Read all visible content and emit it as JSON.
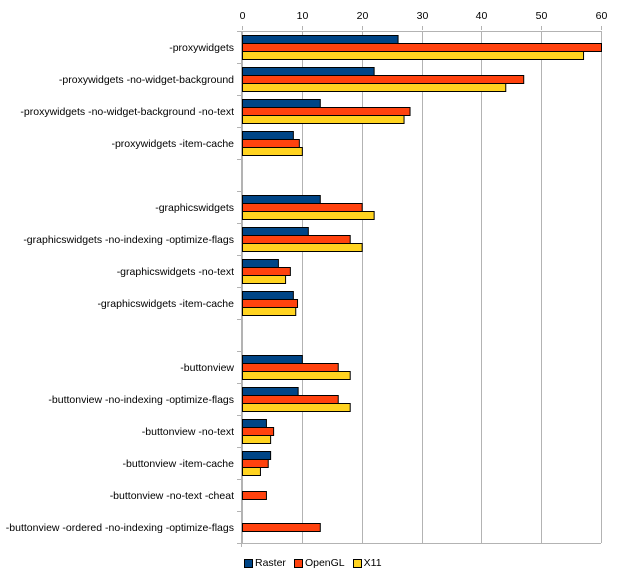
{
  "chart_data": {
    "type": "bar",
    "orientation": "horizontal",
    "title": "",
    "xlabel": "",
    "ylabel": "",
    "xlim": [
      0,
      60
    ],
    "xticks": [
      0,
      10,
      20,
      30,
      40,
      50,
      60
    ],
    "grid": true,
    "legend_position": "bottom",
    "categories": [
      "-proxywidgets",
      "-proxywidgets -no-widget-background",
      "-proxywidgets -no-widget-background -no-text",
      "-proxywidgets -item-cache",
      "",
      "-graphicswidgets",
      "-graphicswidgets -no-indexing -optimize-flags",
      "-graphicswidgets -no-text",
      "-graphicswidgets -item-cache",
      "",
      "-buttonview",
      "-buttonview -no-indexing -optimize-flags",
      "-buttonview -no-text",
      "-buttonview -item-cache",
      "-buttonview -no-text -cheat",
      "-buttonview -ordered -no-indexing -optimize-flags"
    ],
    "series": [
      {
        "name": "Raster",
        "color": "#004586",
        "values": [
          26,
          22,
          13,
          8.5,
          null,
          13,
          11,
          6,
          8.5,
          null,
          10,
          9.3,
          4,
          4.7,
          null,
          null
        ]
      },
      {
        "name": "OpenGL",
        "color": "#ff420e",
        "values": [
          60,
          47,
          28,
          9.5,
          null,
          20,
          18,
          8,
          9.2,
          null,
          16,
          16,
          5.2,
          4.3,
          4,
          13
        ]
      },
      {
        "name": "X11",
        "color": "#ffd320",
        "values": [
          57,
          44,
          27,
          10,
          null,
          22,
          20,
          7.2,
          8.9,
          null,
          18,
          18,
          4.7,
          3,
          null,
          null
        ]
      }
    ]
  }
}
